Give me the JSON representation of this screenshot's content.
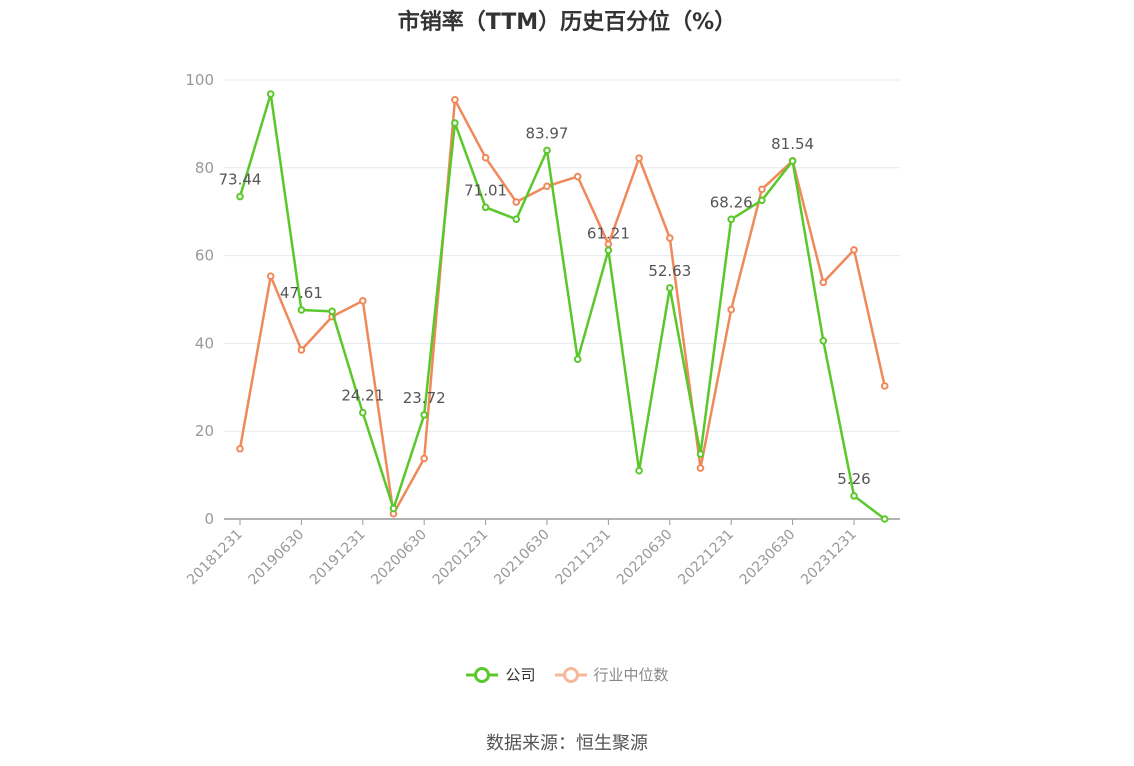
{
  "chart_data": {
    "type": "line",
    "title": "市销率（TTM）历史百分位（%）",
    "x": [
      "20181231",
      "20190331",
      "20190630",
      "20190930",
      "20191231",
      "20200331",
      "20200630",
      "20200930",
      "20201231",
      "20210331",
      "20210630",
      "20210930",
      "20211231",
      "20220331",
      "20220630",
      "20220930",
      "20221231",
      "20230331",
      "20230630",
      "20230930",
      "20231231",
      "20240331"
    ],
    "tick_labels": [
      "20181231",
      "20190630",
      "20191231",
      "20200630",
      "20201231",
      "20210630",
      "20211231",
      "20220630",
      "20221231",
      "20230630",
      "20231231"
    ],
    "ylim": [
      0,
      100
    ],
    "yticks": [
      0,
      20,
      40,
      60,
      80,
      100
    ],
    "grid": true,
    "legend_position": "bottom",
    "series": [
      {
        "name": "公司",
        "color": "#5ac82a",
        "values": [
          73.44,
          96.8,
          47.61,
          47.3,
          24.21,
          2.4,
          23.72,
          90.2,
          71.01,
          68.3,
          83.97,
          36.4,
          61.21,
          11.0,
          52.63,
          14.8,
          68.26,
          72.6,
          81.54,
          40.6,
          5.26,
          0.0
        ],
        "label_indices": [
          0,
          2,
          4,
          6,
          8,
          10,
          12,
          14,
          16,
          18,
          20
        ]
      },
      {
        "name": "行业中位数",
        "color": "#f0895a",
        "values": [
          16.0,
          55.3,
          38.5,
          46.1,
          49.7,
          1.2,
          13.8,
          95.5,
          82.3,
          72.2,
          75.8,
          78.0,
          62.6,
          82.2,
          64.0,
          11.6,
          47.7,
          75.1,
          81.6,
          53.9,
          61.3,
          30.3
        ]
      }
    ]
  },
  "source": "数据来源：恒生聚源"
}
